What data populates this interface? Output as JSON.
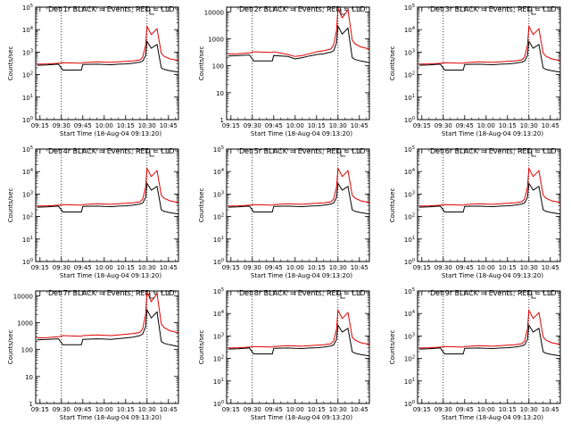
{
  "figure": {
    "ylabel": "Counts/sec",
    "xlabel": "Start Time (18-Aug-04 09:13:20)",
    "x_ticks": [
      "09:15",
      "09:30",
      "09:45",
      "10:00",
      "10:15",
      "10:30",
      "10:45"
    ],
    "legend_text": "BLACK = Events, RED = LLD",
    "colors": {
      "events": "#000000",
      "lld": "#e00000",
      "axes": "#000000"
    }
  },
  "chart_data": [
    {
      "type": "line",
      "title": "Det 1r BLACK = Events, RED = LLD",
      "y_scale": "log",
      "ylim": [
        1,
        100000
      ],
      "y_ticks": [
        "10^0",
        "10^1",
        "10^2",
        "10^3",
        "10^4",
        "10^5"
      ],
      "x_ticks": [
        "09:15",
        "09:30",
        "09:45",
        "10:00",
        "10:15",
        "10:30",
        "10:45"
      ],
      "xlabel": "Start Time (18-Aug-04 09:13:20)",
      "ylabel": "Counts/sec",
      "vlines": [
        "09:30",
        "10:30"
      ],
      "x": [
        "09:13",
        "09:20",
        "09:28",
        "09:31",
        "09:44",
        "09:45",
        "09:55",
        "10:00",
        "10:05",
        "10:10",
        "10:15",
        "10:20",
        "10:25",
        "10:27",
        "10:29",
        "10:30",
        "10:33",
        "10:37",
        "10:40",
        "10:42",
        "10:46",
        "10:52"
      ],
      "series": [
        {
          "name": "Events",
          "color": "#000000",
          "values": [
            260,
            270,
            290,
            160,
            160,
            280,
            290,
            280,
            275,
            290,
            300,
            320,
            360,
            400,
            700,
            3000,
            1500,
            2200,
            200,
            170,
            150,
            130
          ]
        },
        {
          "name": "LLD",
          "color": "#e00000",
          "values": [
            290,
            300,
            320,
            340,
            320,
            340,
            370,
            360,
            350,
            370,
            390,
            410,
            450,
            600,
            2000,
            14000,
            6000,
            11000,
            900,
            650,
            500,
            420
          ]
        }
      ]
    },
    {
      "type": "line",
      "title": "Det 2r BLACK = Events, RED = LLD",
      "y_scale": "log",
      "ylim": [
        1,
        15000
      ],
      "y_ticks": [
        "1",
        "10",
        "100",
        "1000",
        "10000"
      ],
      "x_ticks": [
        "09:15",
        "09:30",
        "09:45",
        "10:00",
        "10:15",
        "10:30",
        "10:45"
      ],
      "xlabel": "Start Time (18-Aug-04 09:13:20)",
      "ylabel": "Counts/sec",
      "vlines": [
        "09:30",
        "10:30"
      ],
      "x": [
        "09:13",
        "09:20",
        "09:28",
        "09:31",
        "09:44",
        "09:45",
        "09:55",
        "10:00",
        "10:05",
        "10:10",
        "10:15",
        "10:20",
        "10:25",
        "10:27",
        "10:29",
        "10:30",
        "10:33",
        "10:37",
        "10:40",
        "10:42",
        "10:46",
        "10:52"
      ],
      "series": [
        {
          "name": "Events",
          "color": "#000000",
          "values": [
            230,
            240,
            250,
            150,
            150,
            240,
            220,
            180,
            200,
            230,
            260,
            280,
            320,
            360,
            700,
            3000,
            1500,
            2500,
            200,
            170,
            150,
            130
          ]
        },
        {
          "name": "LLD",
          "color": "#e00000",
          "values": [
            270,
            280,
            300,
            330,
            310,
            330,
            260,
            220,
            240,
            280,
            330,
            360,
            420,
            600,
            2000,
            14000,
            6000,
            12000,
            900,
            650,
            500,
            420
          ]
        }
      ]
    },
    {
      "type": "line",
      "title": "Det 3r BLACK = Events, RED = LLD",
      "y_scale": "log",
      "ylim": [
        1,
        100000
      ],
      "y_ticks": [
        "10^0",
        "10^1",
        "10^2",
        "10^3",
        "10^4",
        "10^5"
      ],
      "x_ticks": [
        "09:15",
        "09:30",
        "09:45",
        "10:00",
        "10:15",
        "10:30",
        "10:45"
      ],
      "xlabel": "Start Time (18-Aug-04 09:13:20)",
      "ylabel": "Counts/sec",
      "vlines": [
        "09:30",
        "10:30"
      ],
      "x": [
        "09:13",
        "09:20",
        "09:28",
        "09:31",
        "09:44",
        "09:45",
        "09:55",
        "10:00",
        "10:05",
        "10:10",
        "10:15",
        "10:20",
        "10:25",
        "10:27",
        "10:29",
        "10:30",
        "10:33",
        "10:37",
        "10:40",
        "10:42",
        "10:46",
        "10:52"
      ],
      "series": [
        {
          "name": "Events",
          "color": "#000000",
          "values": [
            260,
            270,
            290,
            160,
            160,
            280,
            290,
            280,
            275,
            290,
            300,
            320,
            360,
            400,
            700,
            3000,
            1500,
            2200,
            200,
            170,
            150,
            130
          ]
        },
        {
          "name": "LLD",
          "color": "#e00000",
          "values": [
            290,
            300,
            320,
            340,
            320,
            340,
            370,
            360,
            350,
            370,
            390,
            410,
            450,
            600,
            2000,
            14000,
            6000,
            11000,
            900,
            650,
            500,
            420
          ]
        }
      ]
    },
    {
      "type": "line",
      "title": "Det 4r BLACK = Events, RED = LLD",
      "y_scale": "log",
      "ylim": [
        1,
        100000
      ],
      "y_ticks": [
        "10^0",
        "10^1",
        "10^2",
        "10^3",
        "10^4",
        "10^5"
      ],
      "x_ticks": [
        "09:15",
        "09:30",
        "09:45",
        "10:00",
        "10:15",
        "10:30",
        "10:45"
      ],
      "xlabel": "Start Time (18-Aug-04 09:13:20)",
      "ylabel": "Counts/sec",
      "vlines": [
        "09:30",
        "10:30"
      ],
      "x": [
        "09:13",
        "09:20",
        "09:28",
        "09:31",
        "09:44",
        "09:45",
        "09:55",
        "10:00",
        "10:05",
        "10:10",
        "10:15",
        "10:20",
        "10:25",
        "10:27",
        "10:29",
        "10:30",
        "10:33",
        "10:37",
        "10:40",
        "10:42",
        "10:46",
        "10:52"
      ],
      "series": [
        {
          "name": "Events",
          "color": "#000000",
          "values": [
            260,
            270,
            290,
            160,
            160,
            280,
            290,
            280,
            275,
            290,
            300,
            320,
            360,
            400,
            700,
            3000,
            1500,
            2200,
            200,
            170,
            150,
            130
          ]
        },
        {
          "name": "LLD",
          "color": "#e00000",
          "values": [
            290,
            300,
            320,
            340,
            320,
            340,
            370,
            360,
            350,
            370,
            390,
            410,
            450,
            600,
            2000,
            14000,
            6000,
            11000,
            900,
            650,
            500,
            420
          ]
        }
      ]
    },
    {
      "type": "line",
      "title": "Det 5r BLACK = Events, RED = LLD",
      "y_scale": "log",
      "ylim": [
        1,
        100000
      ],
      "y_ticks": [
        "10^0",
        "10^1",
        "10^2",
        "10^3",
        "10^4",
        "10^5"
      ],
      "x_ticks": [
        "09:15",
        "09:30",
        "09:45",
        "10:00",
        "10:15",
        "10:30",
        "10:45"
      ],
      "xlabel": "Start Time (18-Aug-04 09:13:20)",
      "ylabel": "Counts/sec",
      "vlines": [
        "09:30",
        "10:30"
      ],
      "x": [
        "09:13",
        "09:20",
        "09:28",
        "09:31",
        "09:44",
        "09:45",
        "09:55",
        "10:00",
        "10:05",
        "10:10",
        "10:15",
        "10:20",
        "10:25",
        "10:27",
        "10:29",
        "10:30",
        "10:33",
        "10:37",
        "10:40",
        "10:42",
        "10:46",
        "10:52"
      ],
      "series": [
        {
          "name": "Events",
          "color": "#000000",
          "values": [
            260,
            270,
            290,
            160,
            160,
            280,
            290,
            280,
            275,
            290,
            300,
            320,
            360,
            400,
            700,
            3000,
            1500,
            2200,
            200,
            170,
            150,
            130
          ]
        },
        {
          "name": "LLD",
          "color": "#e00000",
          "values": [
            290,
            300,
            320,
            340,
            320,
            340,
            370,
            360,
            350,
            370,
            390,
            410,
            450,
            600,
            2000,
            14000,
            6000,
            11000,
            900,
            650,
            500,
            420
          ]
        }
      ]
    },
    {
      "type": "line",
      "title": "Det 6r BLACK = Events, RED = LLD",
      "y_scale": "log",
      "ylim": [
        1,
        100000
      ],
      "y_ticks": [
        "10^0",
        "10^1",
        "10^2",
        "10^3",
        "10^4",
        "10^5"
      ],
      "x_ticks": [
        "09:15",
        "09:30",
        "09:45",
        "10:00",
        "10:15",
        "10:30",
        "10:45"
      ],
      "xlabel": "Start Time (18-Aug-04 09:13:20)",
      "ylabel": "Counts/sec",
      "vlines": [
        "09:30",
        "10:30"
      ],
      "x": [
        "09:13",
        "09:20",
        "09:28",
        "09:31",
        "09:44",
        "09:45",
        "09:55",
        "10:00",
        "10:05",
        "10:10",
        "10:15",
        "10:20",
        "10:25",
        "10:27",
        "10:29",
        "10:30",
        "10:33",
        "10:37",
        "10:40",
        "10:42",
        "10:46",
        "10:52"
      ],
      "series": [
        {
          "name": "Events",
          "color": "#000000",
          "values": [
            260,
            270,
            290,
            160,
            160,
            280,
            290,
            280,
            275,
            290,
            300,
            320,
            360,
            400,
            700,
            3000,
            1500,
            2200,
            200,
            170,
            150,
            130
          ]
        },
        {
          "name": "LLD",
          "color": "#e00000",
          "values": [
            290,
            300,
            320,
            340,
            320,
            340,
            370,
            360,
            350,
            370,
            390,
            410,
            450,
            600,
            2000,
            14000,
            6000,
            11000,
            900,
            650,
            500,
            420
          ]
        }
      ]
    },
    {
      "type": "line",
      "title": "Det 7r BLACK = Events, RED = LLD",
      "y_scale": "log",
      "ylim": [
        1,
        15000
      ],
      "y_ticks": [
        "1",
        "10",
        "100",
        "1000",
        "10000"
      ],
      "x_ticks": [
        "09:15",
        "09:30",
        "09:45",
        "10:00",
        "10:15",
        "10:30",
        "10:45"
      ],
      "xlabel": "Start Time (18-Aug-04 09:13:20)",
      "ylabel": "Counts/sec",
      "vlines": [
        "09:30",
        "10:30"
      ],
      "x": [
        "09:13",
        "09:20",
        "09:28",
        "09:31",
        "09:44",
        "09:45",
        "09:55",
        "10:00",
        "10:05",
        "10:10",
        "10:15",
        "10:20",
        "10:25",
        "10:27",
        "10:29",
        "10:30",
        "10:33",
        "10:37",
        "10:40",
        "10:42",
        "10:46",
        "10:52"
      ],
      "series": [
        {
          "name": "Events",
          "color": "#000000",
          "values": [
            230,
            240,
            250,
            150,
            150,
            240,
            250,
            245,
            240,
            255,
            270,
            290,
            330,
            380,
            700,
            3000,
            1500,
            2500,
            200,
            170,
            150,
            130
          ]
        },
        {
          "name": "LLD",
          "color": "#e00000",
          "values": [
            270,
            280,
            300,
            330,
            310,
            330,
            350,
            340,
            330,
            350,
            370,
            390,
            430,
            600,
            2000,
            14000,
            6000,
            12000,
            900,
            650,
            500,
            420
          ]
        }
      ]
    },
    {
      "type": "line",
      "title": "Det 8r BLACK = Events, RED = LLD",
      "y_scale": "log",
      "ylim": [
        1,
        100000
      ],
      "y_ticks": [
        "10^0",
        "10^1",
        "10^2",
        "10^3",
        "10^4",
        "10^5"
      ],
      "x_ticks": [
        "09:15",
        "09:30",
        "09:45",
        "10:00",
        "10:15",
        "10:30",
        "10:45"
      ],
      "xlabel": "Start Time (18-Aug-04 09:13:20)",
      "ylabel": "Counts/sec",
      "vlines": [
        "09:30",
        "10:30"
      ],
      "x": [
        "09:13",
        "09:20",
        "09:28",
        "09:31",
        "09:44",
        "09:45",
        "09:55",
        "10:00",
        "10:05",
        "10:10",
        "10:15",
        "10:20",
        "10:25",
        "10:27",
        "10:29",
        "10:30",
        "10:33",
        "10:37",
        "10:40",
        "10:42",
        "10:46",
        "10:52"
      ],
      "series": [
        {
          "name": "Events",
          "color": "#000000",
          "values": [
            260,
            270,
            290,
            160,
            160,
            280,
            290,
            280,
            275,
            290,
            300,
            320,
            360,
            400,
            700,
            3000,
            1500,
            2200,
            200,
            170,
            150,
            130
          ]
        },
        {
          "name": "LLD",
          "color": "#e00000",
          "values": [
            290,
            300,
            320,
            340,
            320,
            340,
            370,
            360,
            350,
            370,
            390,
            410,
            450,
            600,
            2000,
            14000,
            6000,
            11000,
            900,
            650,
            500,
            420
          ]
        }
      ]
    },
    {
      "type": "line",
      "title": "Det 9r BLACK = Events, RED = LLD",
      "y_scale": "log",
      "ylim": [
        1,
        100000
      ],
      "y_ticks": [
        "10^0",
        "10^1",
        "10^2",
        "10^3",
        "10^4",
        "10^5"
      ],
      "x_ticks": [
        "09:15",
        "09:30",
        "09:45",
        "10:00",
        "10:15",
        "10:30",
        "10:45"
      ],
      "xlabel": "Start Time (18-Aug-04 09:13:20)",
      "ylabel": "Counts/sec",
      "vlines": [
        "09:30",
        "10:30"
      ],
      "x": [
        "09:13",
        "09:20",
        "09:28",
        "09:31",
        "09:44",
        "09:45",
        "09:55",
        "10:00",
        "10:05",
        "10:10",
        "10:15",
        "10:20",
        "10:25",
        "10:27",
        "10:29",
        "10:30",
        "10:33",
        "10:37",
        "10:40",
        "10:42",
        "10:46",
        "10:52"
      ],
      "series": [
        {
          "name": "Events",
          "color": "#000000",
          "values": [
            260,
            270,
            290,
            160,
            160,
            280,
            290,
            280,
            275,
            290,
            300,
            320,
            360,
            400,
            700,
            3000,
            1500,
            2200,
            200,
            170,
            150,
            130
          ]
        },
        {
          "name": "LLD",
          "color": "#e00000",
          "values": [
            290,
            300,
            320,
            340,
            320,
            340,
            370,
            360,
            350,
            370,
            390,
            410,
            450,
            600,
            2000,
            14000,
            6000,
            11000,
            900,
            650,
            500,
            420
          ]
        }
      ]
    }
  ]
}
